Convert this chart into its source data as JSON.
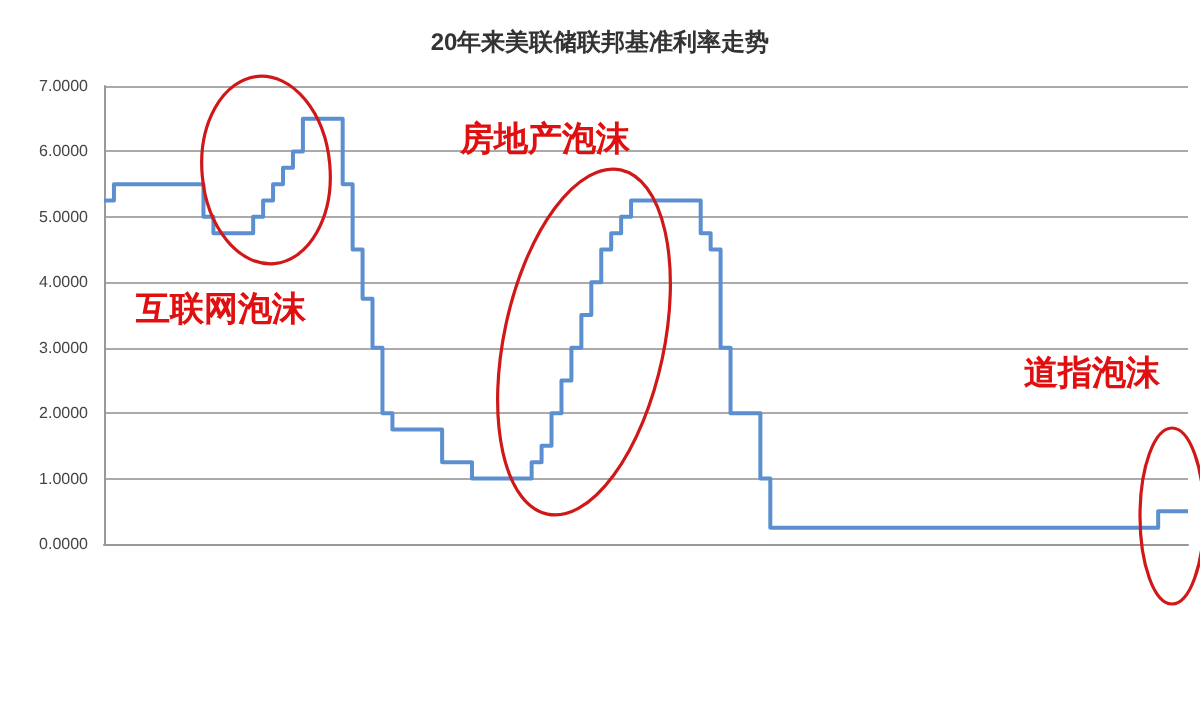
{
  "chart_data": {
    "type": "step",
    "title": "20年来美联储联邦基准利率走势",
    "categories": [
      null,
      null,
      null,
      null,
      null,
      null,
      null,
      null,
      null,
      null,
      null,
      null,
      null,
      null,
      null,
      null,
      null,
      null,
      null,
      null,
      null,
      null,
      null,
      null,
      null,
      null,
      null,
      null,
      null,
      null,
      null,
      null,
      null,
      null,
      null,
      null,
      null,
      null,
      null,
      null,
      null,
      null,
      null,
      null,
      null,
      null,
      null,
      null,
      null,
      null,
      null,
      null,
      null,
      null,
      null,
      null,
      null,
      null,
      null,
      null,
      null,
      null,
      null,
      null,
      null,
      null,
      null,
      null,
      null,
      null,
      null,
      null,
      null,
      null,
      null,
      null,
      null,
      null,
      null,
      null,
      null,
      null,
      null,
      null,
      null,
      null,
      null,
      null,
      null,
      null,
      null,
      null,
      null,
      null,
      null,
      null,
      null,
      null,
      null,
      null,
      null,
      null,
      null,
      null,
      null,
      null,
      null,
      null,
      null,
      null
    ],
    "values": [
      5.25,
      5.5,
      5.5,
      5.5,
      5.5,
      5.5,
      5.5,
      5.5,
      5.5,
      5.5,
      5.0,
      4.75,
      4.75,
      4.75,
      4.75,
      5.0,
      5.25,
      5.5,
      5.75,
      6.0,
      6.5,
      6.5,
      6.5,
      6.5,
      5.5,
      4.5,
      3.75,
      3.0,
      2.0,
      1.75,
      1.75,
      1.75,
      1.75,
      1.75,
      1.25,
      1.25,
      1.25,
      1.0,
      1.0,
      1.0,
      1.0,
      1.0,
      1.0,
      1.25,
      1.5,
      2.0,
      2.5,
      3.0,
      3.5,
      4.0,
      4.5,
      4.75,
      5.0,
      5.25,
      5.25,
      5.25,
      5.25,
      5.25,
      5.25,
      5.25,
      4.75,
      4.5,
      3.0,
      2.0,
      2.0,
      2.0,
      1.0,
      0.25,
      0.25,
      0.25,
      0.25,
      0.25,
      0.25,
      0.25,
      0.25,
      0.25,
      0.25,
      0.25,
      0.25,
      0.25,
      0.25,
      0.25,
      0.25,
      0.25,
      0.25,
      0.25,
      0.25,
      0.25,
      0.25,
      0.25,
      0.25,
      0.25,
      0.25,
      0.25,
      0.25,
      0.25,
      0.25,
      0.25,
      0.25,
      0.25,
      0.25,
      0.25,
      0.25,
      0.25,
      0.25,
      0.25,
      0.5,
      0.5,
      0.5,
      0.5
    ],
    "color": "#5b8fd0",
    "line_style": "solid",
    "marker": "none",
    "ylim": [
      0,
      7
    ],
    "yticks": [
      {
        "value": 0,
        "label": "0.0000"
      },
      {
        "value": 1,
        "label": "1.0000"
      },
      {
        "value": 2,
        "label": "2.0000"
      },
      {
        "value": 3,
        "label": "3.0000"
      },
      {
        "value": 4,
        "label": "4.0000"
      },
      {
        "value": 5,
        "label": "5.0000"
      },
      {
        "value": 6,
        "label": "6.0000"
      },
      {
        "value": 7,
        "label": "7.0000"
      }
    ],
    "grid": "y",
    "annotations": [
      "互联网泡沫",
      "房地产泡沫",
      "道指泡沫"
    ]
  }
}
